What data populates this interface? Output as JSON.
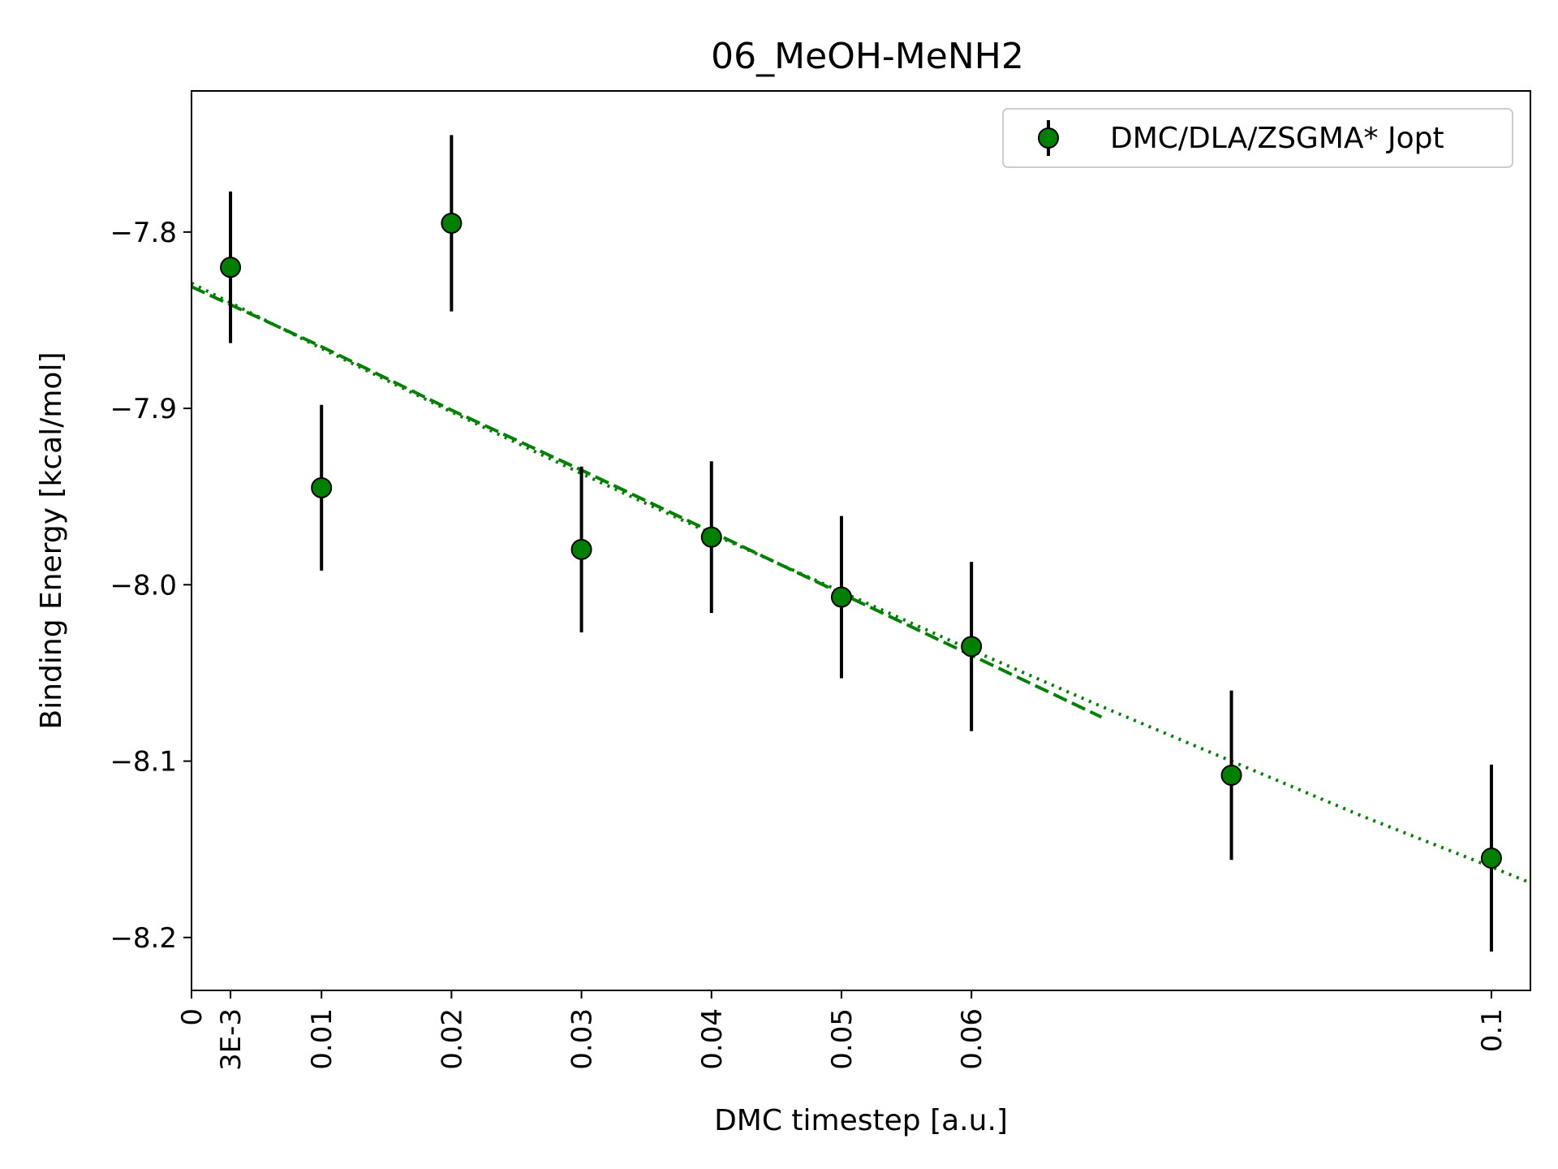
{
  "chart_data": {
    "type": "scatter",
    "title": "06_MeOH-MeNH2",
    "xlabel": "DMC timestep [a.u.]",
    "ylabel": "Binding Energy [kcal/mol]",
    "xlim": [
      0,
      0.103
    ],
    "ylim": [
      -8.23,
      -7.72
    ],
    "xticks": [
      {
        "value": 0,
        "label": "0"
      },
      {
        "value": 0.003,
        "label": "3E-3"
      },
      {
        "value": 0.01,
        "label": "0.01"
      },
      {
        "value": 0.02,
        "label": "0.02"
      },
      {
        "value": 0.03,
        "label": "0.03"
      },
      {
        "value": 0.04,
        "label": "0.04"
      },
      {
        "value": 0.05,
        "label": "0.05"
      },
      {
        "value": 0.06,
        "label": "0.06"
      },
      {
        "value": 0.1,
        "label": "0.1"
      }
    ],
    "yticks": [
      {
        "value": -7.8,
        "label": "−7.8"
      },
      {
        "value": -7.9,
        "label": "−7.9"
      },
      {
        "value": -8.0,
        "label": "−8.0"
      },
      {
        "value": -8.1,
        "label": "−8.1"
      },
      {
        "value": -8.2,
        "label": "−8.2"
      }
    ],
    "grid": false,
    "legend_position": "top-right",
    "series": [
      {
        "name": "DMC/DLA/ZSGMA* Jopt",
        "marker_color": "#008000",
        "errorbar_color": "#000000",
        "points": [
          {
            "x": 0.003,
            "y": -7.82,
            "err": 0.043
          },
          {
            "x": 0.01,
            "y": -7.945,
            "err": 0.047
          },
          {
            "x": 0.02,
            "y": -7.795,
            "err": 0.05
          },
          {
            "x": 0.03,
            "y": -7.98,
            "err": 0.047
          },
          {
            "x": 0.04,
            "y": -7.973,
            "err": 0.043
          },
          {
            "x": 0.05,
            "y": -8.007,
            "err": 0.046
          },
          {
            "x": 0.06,
            "y": -8.035,
            "err": 0.048
          },
          {
            "x": 0.08,
            "y": -8.108,
            "err": 0.048
          },
          {
            "x": 0.1,
            "y": -8.155,
            "err": 0.053
          }
        ]
      }
    ],
    "fits": [
      {
        "style": "dashed",
        "color": "#008000",
        "x": [
          0,
          0.01,
          0.02,
          0.03,
          0.04,
          0.05,
          0.06,
          0.07
        ],
        "y": [
          -7.831,
          -7.865,
          -7.901,
          -7.935,
          -7.97,
          -8.005,
          -8.04,
          -8.075
        ]
      },
      {
        "style": "dotted",
        "color": "#008000",
        "x": [
          0,
          0.01,
          0.02,
          0.03,
          0.04,
          0.05,
          0.06,
          0.07,
          0.08,
          0.09,
          0.1,
          0.103
        ],
        "y": [
          -7.829,
          -7.866,
          -7.902,
          -7.937,
          -7.971,
          -8.004,
          -8.037,
          -8.069,
          -8.1,
          -8.131,
          -8.16,
          -8.169
        ]
      }
    ]
  }
}
